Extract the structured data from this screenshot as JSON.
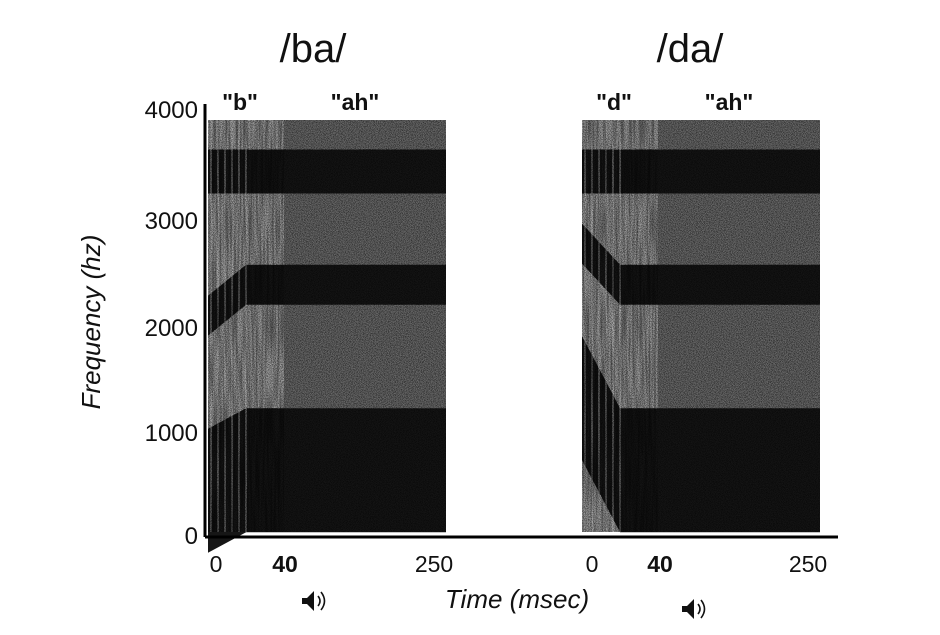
{
  "chart_data": {
    "type": "heatmap",
    "ylabel": "Frequency (hz)",
    "xlabel": "Time (msec)",
    "ylim": [
      0,
      4000
    ],
    "yticks": [
      "0",
      "1000",
      "2000",
      "3000",
      "4000"
    ],
    "panels": [
      {
        "title": "/ba/",
        "segments": [
          "\"b\"",
          "\"ah\""
        ],
        "xticks": [
          "0",
          "40",
          "250"
        ],
        "transition_ms": 40,
        "duration_ms": 250,
        "formants_start_hz": [
          400,
          2100,
          3500
        ],
        "formants_end_hz": [
          600,
          2400,
          3500
        ],
        "sound_icon": "speaker-icon"
      },
      {
        "title": "/da/",
        "segments": [
          "\"d\"",
          "\"ah\""
        ],
        "xticks": [
          "0",
          "40",
          "250"
        ],
        "transition_ms": 40,
        "duration_ms": 250,
        "formants_start_hz": [
          1300,
          2800,
          3500
        ],
        "formants_end_hz": [
          600,
          2400,
          3500
        ],
        "sound_icon": "speaker-icon"
      }
    ]
  }
}
